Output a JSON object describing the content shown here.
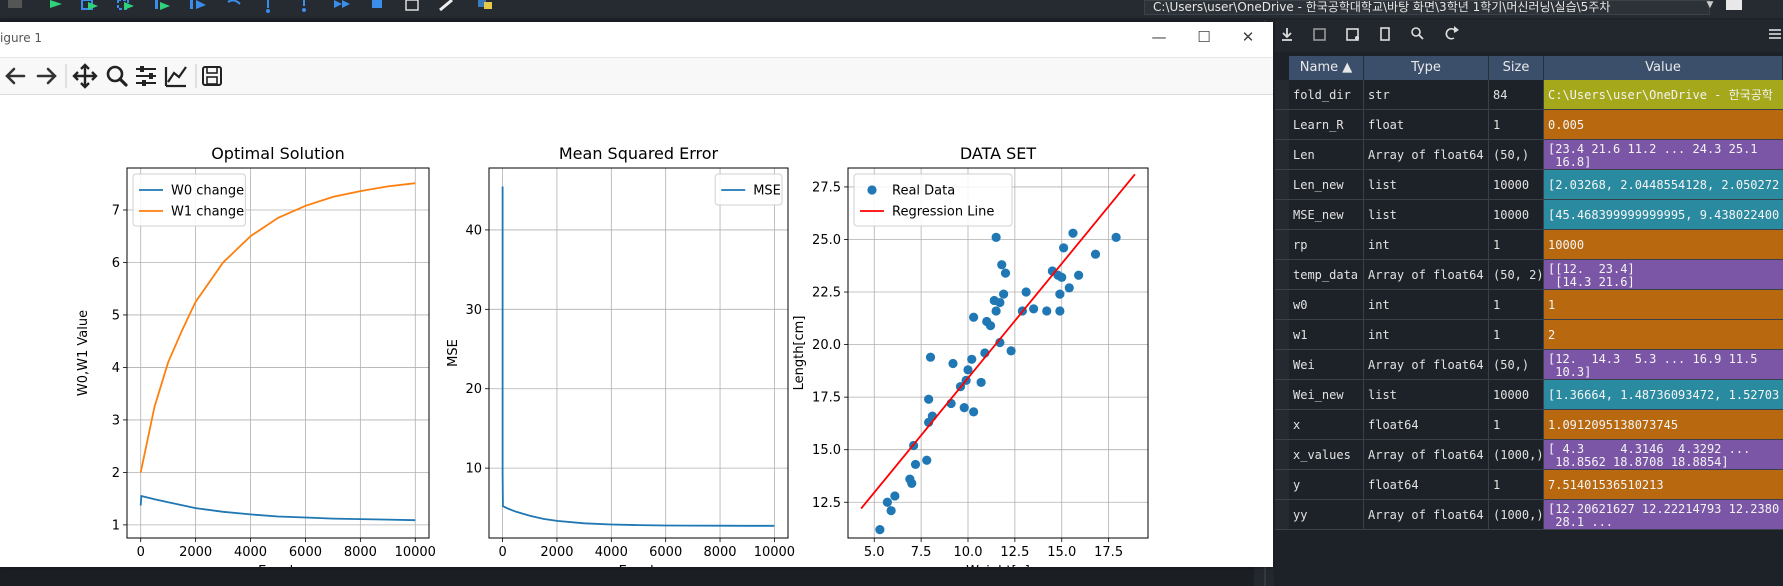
{
  "ide": {
    "path_text": "C:\\Users\\user\\OneDrive - 한국공학대학교\\바탕 화면\\3학년 1학기\\머신러닝\\실습\\5주차",
    "colors": {
      "play": "#2fd27a",
      "blue": "#3a8eea",
      "yellow": "#e6c84a"
    },
    "toolbar_icons": [
      "file-icon",
      "run-icon",
      "run-cell-icon",
      "run-cell-advance-icon",
      "run-selection-icon",
      "debug-icon",
      "debug-step-icon",
      "debug-step-into-icon",
      "debug-return-icon",
      "debug-continue-icon",
      "stop-icon",
      "maximize-pane-icon",
      "preferences-icon",
      "python-path-icon"
    ]
  },
  "figure": {
    "title": "igure 1",
    "window_buttons": {
      "minimize": "—",
      "maximize": "☐",
      "close": "✕"
    },
    "toolbar": [
      "home-icon",
      "back-icon",
      "forward-icon",
      "pan-icon",
      "zoom-icon",
      "configure-subplots-icon",
      "edit-axis-icon",
      "save-icon"
    ]
  },
  "chart_data": [
    {
      "type": "line",
      "title": "Optimal Solution",
      "xlabel": "Epoch",
      "ylabel": "W0,W1 Value",
      "xlim": [
        -500,
        10500
      ],
      "ylim": [
        0.75,
        7.8
      ],
      "xticks": [
        "0",
        "2000",
        "4000",
        "6000",
        "8000",
        "10000"
      ],
      "yticks": [
        "1",
        "2",
        "3",
        "4",
        "5",
        "6",
        "7"
      ],
      "grid": true,
      "legend": "upper-left",
      "series": [
        {
          "name": "W0 change",
          "color": "#1f77b4",
          "x": [
            0,
            20,
            500,
            1000,
            2000,
            3000,
            4000,
            5000,
            6000,
            7000,
            8000,
            9000,
            10000
          ],
          "y": [
            1.37,
            1.55,
            1.49,
            1.43,
            1.32,
            1.25,
            1.2,
            1.16,
            1.14,
            1.12,
            1.11,
            1.1,
            1.09
          ]
        },
        {
          "name": "W1 change",
          "color": "#ff7f0e",
          "x": [
            0,
            500,
            1000,
            1500,
            2000,
            3000,
            4000,
            5000,
            6000,
            7000,
            8000,
            9000,
            10000
          ],
          "y": [
            2.0,
            3.25,
            4.1,
            4.7,
            5.25,
            6.0,
            6.5,
            6.85,
            7.08,
            7.25,
            7.36,
            7.45,
            7.51
          ]
        }
      ]
    },
    {
      "type": "line",
      "title": "Mean Squared Error",
      "xlabel": "Epoch",
      "ylabel": "MSE",
      "xlim": [
        -500,
        10500
      ],
      "ylim": [
        1.2,
        47.8
      ],
      "xticks": [
        "0",
        "2000",
        "4000",
        "6000",
        "8000",
        "10000"
      ],
      "yticks": [
        "10",
        "20",
        "30",
        "40"
      ],
      "grid": true,
      "legend": "upper-right",
      "series": [
        {
          "name": "MSE",
          "color": "#1f77b4",
          "x": [
            0,
            1,
            10,
            200,
            500,
            1000,
            1500,
            2000,
            3000,
            4000,
            5000,
            6000,
            7000,
            8000,
            9000,
            10000
          ],
          "y": [
            45.47,
            9.44,
            5.2,
            4.9,
            4.5,
            4.0,
            3.6,
            3.35,
            3.05,
            2.9,
            2.83,
            2.78,
            2.76,
            2.75,
            2.74,
            2.74
          ]
        }
      ]
    },
    {
      "type": "scatter",
      "title": "DATA SET",
      "xlabel": "Weight[g]",
      "ylabel": "Length[cm]",
      "xlim": [
        3.6,
        19.6
      ],
      "ylim": [
        10.8,
        28.4
      ],
      "xticks": [
        "5.0",
        "7.5",
        "10.0",
        "12.5",
        "15.0",
        "17.5"
      ],
      "yticks": [
        "12.5",
        "15.0",
        "17.5",
        "20.0",
        "22.5",
        "25.0",
        "27.5"
      ],
      "grid": true,
      "legend": "upper-left",
      "series": [
        {
          "name": "Real Data",
          "color": "#1f77b4",
          "points": [
            [
              5.3,
              11.2
            ],
            [
              5.7,
              12.5
            ],
            [
              5.9,
              12.1
            ],
            [
              6.1,
              12.8
            ],
            [
              6.9,
              13.6
            ],
            [
              7.0,
              13.4
            ],
            [
              7.2,
              14.3
            ],
            [
              7.8,
              14.5
            ],
            [
              7.1,
              15.2
            ],
            [
              7.9,
              16.3
            ],
            [
              8.1,
              16.6
            ],
            [
              7.9,
              17.4
            ],
            [
              8.0,
              19.4
            ],
            [
              9.1,
              17.2
            ],
            [
              9.2,
              19.1
            ],
            [
              9.6,
              18.0
            ],
            [
              9.8,
              17.0
            ],
            [
              9.9,
              18.3
            ],
            [
              10.0,
              18.8
            ],
            [
              10.2,
              19.3
            ],
            [
              10.3,
              16.8
            ],
            [
              10.3,
              21.3
            ],
            [
              10.7,
              18.2
            ],
            [
              10.9,
              19.6
            ],
            [
              11.0,
              21.1
            ],
            [
              11.2,
              20.9
            ],
            [
              11.4,
              22.1
            ],
            [
              11.5,
              21.6
            ],
            [
              11.5,
              25.1
            ],
            [
              11.7,
              22.0
            ],
            [
              11.8,
              23.8
            ],
            [
              11.7,
              20.1
            ],
            [
              11.9,
              22.4
            ],
            [
              12.0,
              23.4
            ],
            [
              12.3,
              19.7
            ],
            [
              12.9,
              21.6
            ],
            [
              13.1,
              22.5
            ],
            [
              13.5,
              21.7
            ],
            [
              14.2,
              21.6
            ],
            [
              14.5,
              23.5
            ],
            [
              14.8,
              23.3
            ],
            [
              15.0,
              23.2
            ],
            [
              14.9,
              21.6
            ],
            [
              14.9,
              22.4
            ],
            [
              15.1,
              24.6
            ],
            [
              15.4,
              22.7
            ],
            [
              15.6,
              25.3
            ],
            [
              15.9,
              23.3
            ],
            [
              16.8,
              24.3
            ],
            [
              17.9,
              25.1
            ]
          ]
        },
        {
          "name": "Regression Line",
          "color": "#ff0000",
          "x": [
            4.3,
            18.9
          ],
          "y": [
            12.2,
            28.1
          ]
        }
      ]
    }
  ],
  "variable_explorer": {
    "headers": {
      "name": "Name ▲",
      "type": "Type",
      "size": "Size",
      "value": "Value"
    },
    "tool_icons": [
      "import-data-icon",
      "save-data-icon",
      "save-as-icon",
      "remove-all-icon",
      "search-icon",
      "refresh-icon",
      "options-menu-icon"
    ],
    "colors": {
      "str": "#8a8a1a",
      "orange": "#b8680e",
      "purple": "#7b56a6",
      "teal": "#2a8aa0"
    },
    "rows": [
      {
        "name": "fold_dir",
        "type": "str",
        "size": "84",
        "value": "C:\\Users\\user\\OneDrive - 한국공학",
        "color": "#a5a81a"
      },
      {
        "name": "Learn_R",
        "type": "float",
        "size": "1",
        "value": "0.005",
        "color": "#b8680e"
      },
      {
        "name": "Len",
        "type": "Array of float64",
        "size": "(50,)",
        "value": "[23.4 21.6 11.2 ... 24.3 25.1\n 16.8]",
        "color": "#7b56a6"
      },
      {
        "name": "Len_new",
        "type": "list",
        "size": "10000",
        "value": "[2.03268, 2.0448554128, 2.050272",
        "color": "#2a8aa0"
      },
      {
        "name": "MSE_new",
        "type": "list",
        "size": "10000",
        "value": "[45.468399999999995, 9.438022400",
        "color": "#2a8aa0"
      },
      {
        "name": "rp",
        "type": "int",
        "size": "1",
        "value": "10000",
        "color": "#b8680e"
      },
      {
        "name": "temp_data",
        "type": "Array of float64",
        "size": "(50, 2)",
        "value": "[[12.  23.4]\n [14.3 21.6]",
        "color": "#7b56a6"
      },
      {
        "name": "w0",
        "type": "int",
        "size": "1",
        "value": "1",
        "color": "#b8680e"
      },
      {
        "name": "w1",
        "type": "int",
        "size": "1",
        "value": "2",
        "color": "#b8680e"
      },
      {
        "name": "Wei",
        "type": "Array of float64",
        "size": "(50,)",
        "value": "[12.  14.3  5.3 ... 16.9 11.5\n 10.3]",
        "color": "#7b56a6"
      },
      {
        "name": "Wei_new",
        "type": "list",
        "size": "10000",
        "value": "[1.36664, 1.48736093472, 1.52703",
        "color": "#2a8aa0"
      },
      {
        "name": "x",
        "type": "float64",
        "size": "1",
        "value": "1.0912095138073745",
        "color": "#b8680e"
      },
      {
        "name": "x_values",
        "type": "Array of float64",
        "size": "(1000,)",
        "value": "[ 4.3     4.3146  4.3292 ...\n 18.8562 18.8708 18.8854]",
        "color": "#7b56a6"
      },
      {
        "name": "y",
        "type": "float64",
        "size": "1",
        "value": "7.51401536510213",
        "color": "#b8680e"
      },
      {
        "name": "yy",
        "type": "Array of float64",
        "size": "(1000,)",
        "value": "[12.20621627 12.22214793 12.2380\n 28.1 ...",
        "color": "#7b56a6"
      }
    ]
  }
}
